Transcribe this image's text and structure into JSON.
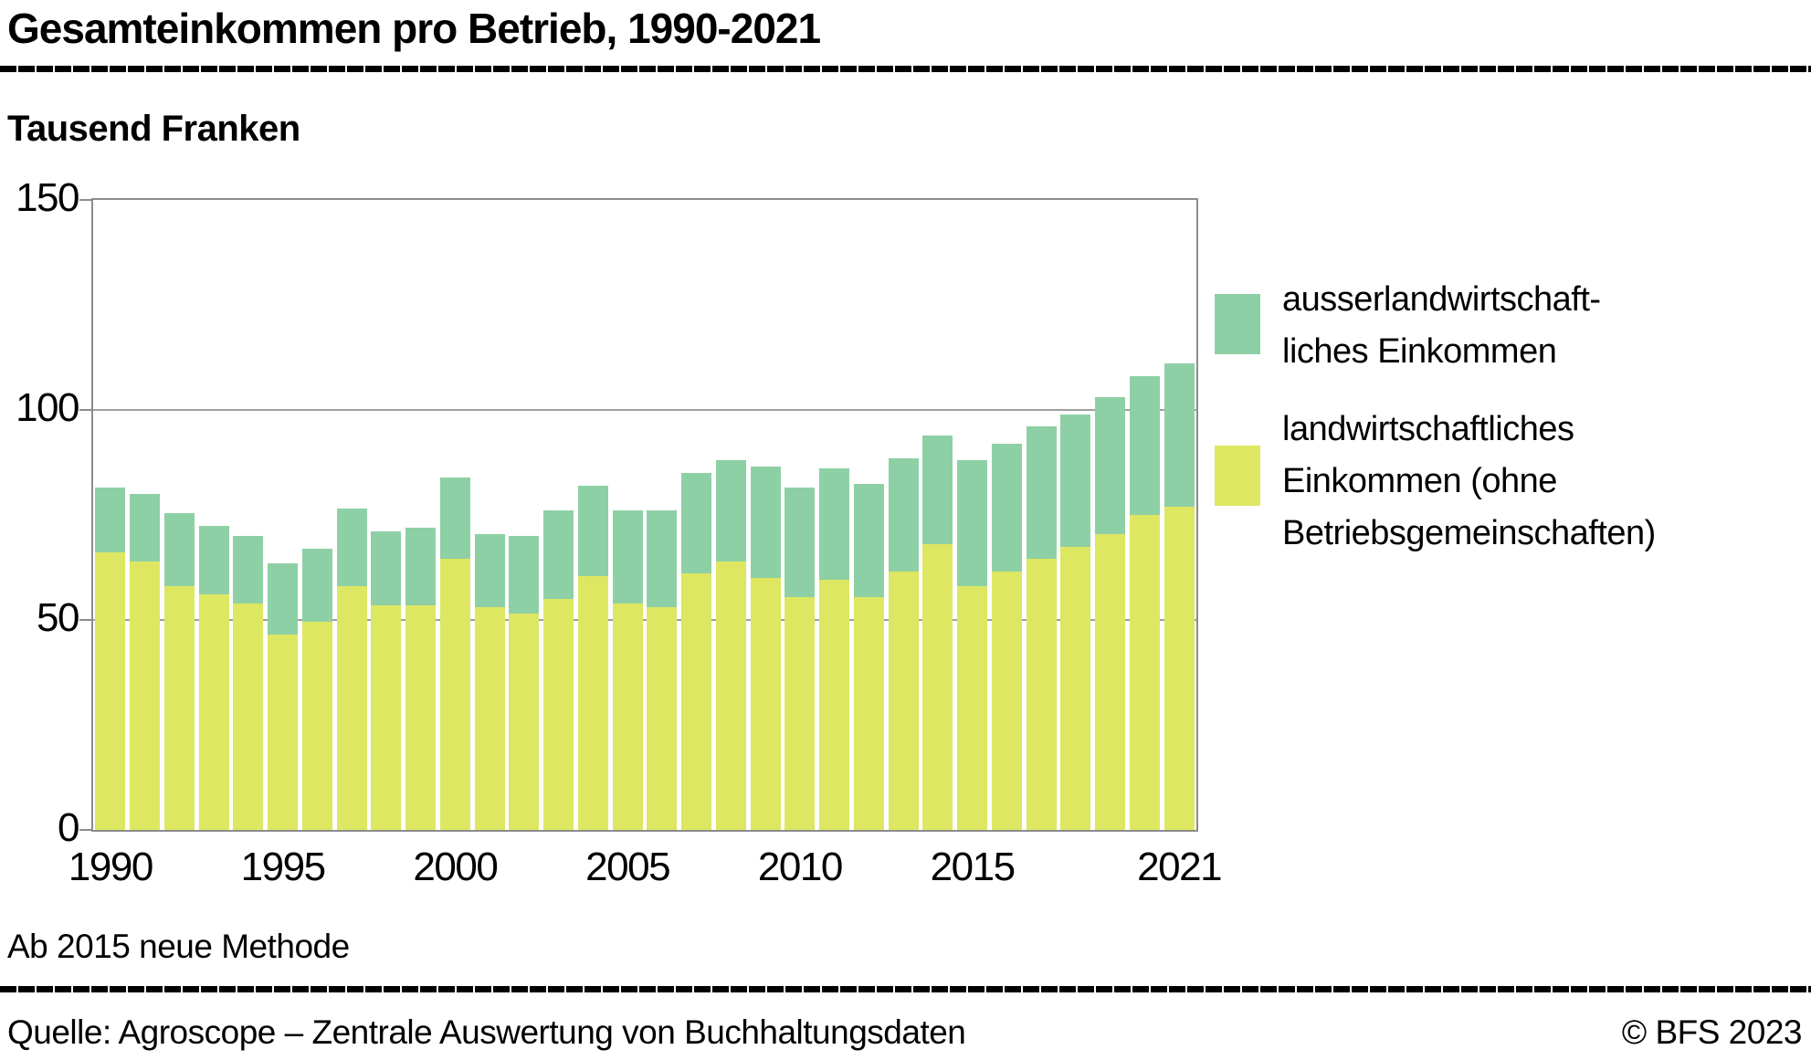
{
  "title": "Gesamteinkommen pro Betrieb, 1990-2021",
  "y_axis_title": "Tausend Franken",
  "note": "Ab 2015 neue Methode",
  "footer": {
    "source": "Quelle: Agroscope – Zentrale Auswertung von Buchhaltungsdaten",
    "copyright": "© BFS 2023"
  },
  "colors": {
    "nonfarm_green": "#8ed0a5",
    "farm_yellow": "#dde762",
    "axis_gray": "#8c8c8c",
    "grid_gray": "#9e9e9e",
    "rule_black": "#000000"
  },
  "legend": [
    {
      "color": "#8ed0a5",
      "lines": [
        "ausserlandwirtschaft-",
        "liches Einkommen"
      ]
    },
    {
      "color": "#dde762",
      "lines": [
        "landwirtschaftliches",
        "Einkommen (ohne",
        "Betriebsgemeinschaften)"
      ]
    }
  ],
  "chart_data": {
    "type": "bar",
    "stacked": true,
    "title": "Gesamteinkommen pro Betrieb, 1990-2021",
    "ylabel": "Tausend Franken",
    "ylim": [
      0,
      150
    ],
    "yticks": [
      0,
      50,
      100,
      150
    ],
    "grid": "horizontal at 50 and 100, frame border",
    "legend_position": "right",
    "x": [
      1990,
      1991,
      1992,
      1993,
      1994,
      1995,
      1996,
      1997,
      1998,
      1999,
      2000,
      2001,
      2002,
      2003,
      2004,
      2005,
      2006,
      2007,
      2008,
      2009,
      2010,
      2011,
      2012,
      2013,
      2014,
      2015,
      2016,
      2017,
      2018,
      2019,
      2020,
      2021
    ],
    "xtick_labels": [
      "1990",
      "1995",
      "2000",
      "2005",
      "2010",
      "2015",
      "2021"
    ],
    "xtick_indices": [
      0,
      5,
      10,
      15,
      20,
      25,
      31
    ],
    "series": [
      {
        "name": "landwirtschaftliches Einkommen (ohne Betriebsgemeinschaften)",
        "color": "#dde762",
        "values": [
          66,
          64,
          58,
          56,
          54,
          46.5,
          49.5,
          58,
          53.5,
          53.5,
          64.5,
          53,
          51.5,
          55,
          60.5,
          54,
          53,
          61,
          64,
          60,
          55.5,
          59.5,
          55.5,
          61.5,
          68,
          58,
          61.5,
          64.5,
          67.5,
          70.5,
          75,
          77
        ]
      },
      {
        "name": "ausserlandwirtschaftliches Einkommen",
        "color": "#8ed0a5",
        "values": [
          15.5,
          16,
          17.5,
          16.5,
          16,
          17,
          17.5,
          18.5,
          17.5,
          18.5,
          19.5,
          17.5,
          18.5,
          21,
          21.5,
          22,
          23,
          24,
          24,
          26.5,
          26,
          26.5,
          27,
          27,
          26,
          30,
          30.5,
          31.5,
          31.5,
          32.5,
          33,
          34
        ]
      }
    ],
    "totals": [
      81.5,
      80,
      75.5,
      72.5,
      70,
      63.5,
      67,
      76.5,
      71,
      72,
      84,
      70.5,
      70,
      76,
      82,
      76,
      76,
      85,
      88,
      86.5,
      81.5,
      86,
      82.5,
      88.5,
      94,
      88,
      92,
      96,
      99,
      103,
      108,
      111
    ]
  }
}
